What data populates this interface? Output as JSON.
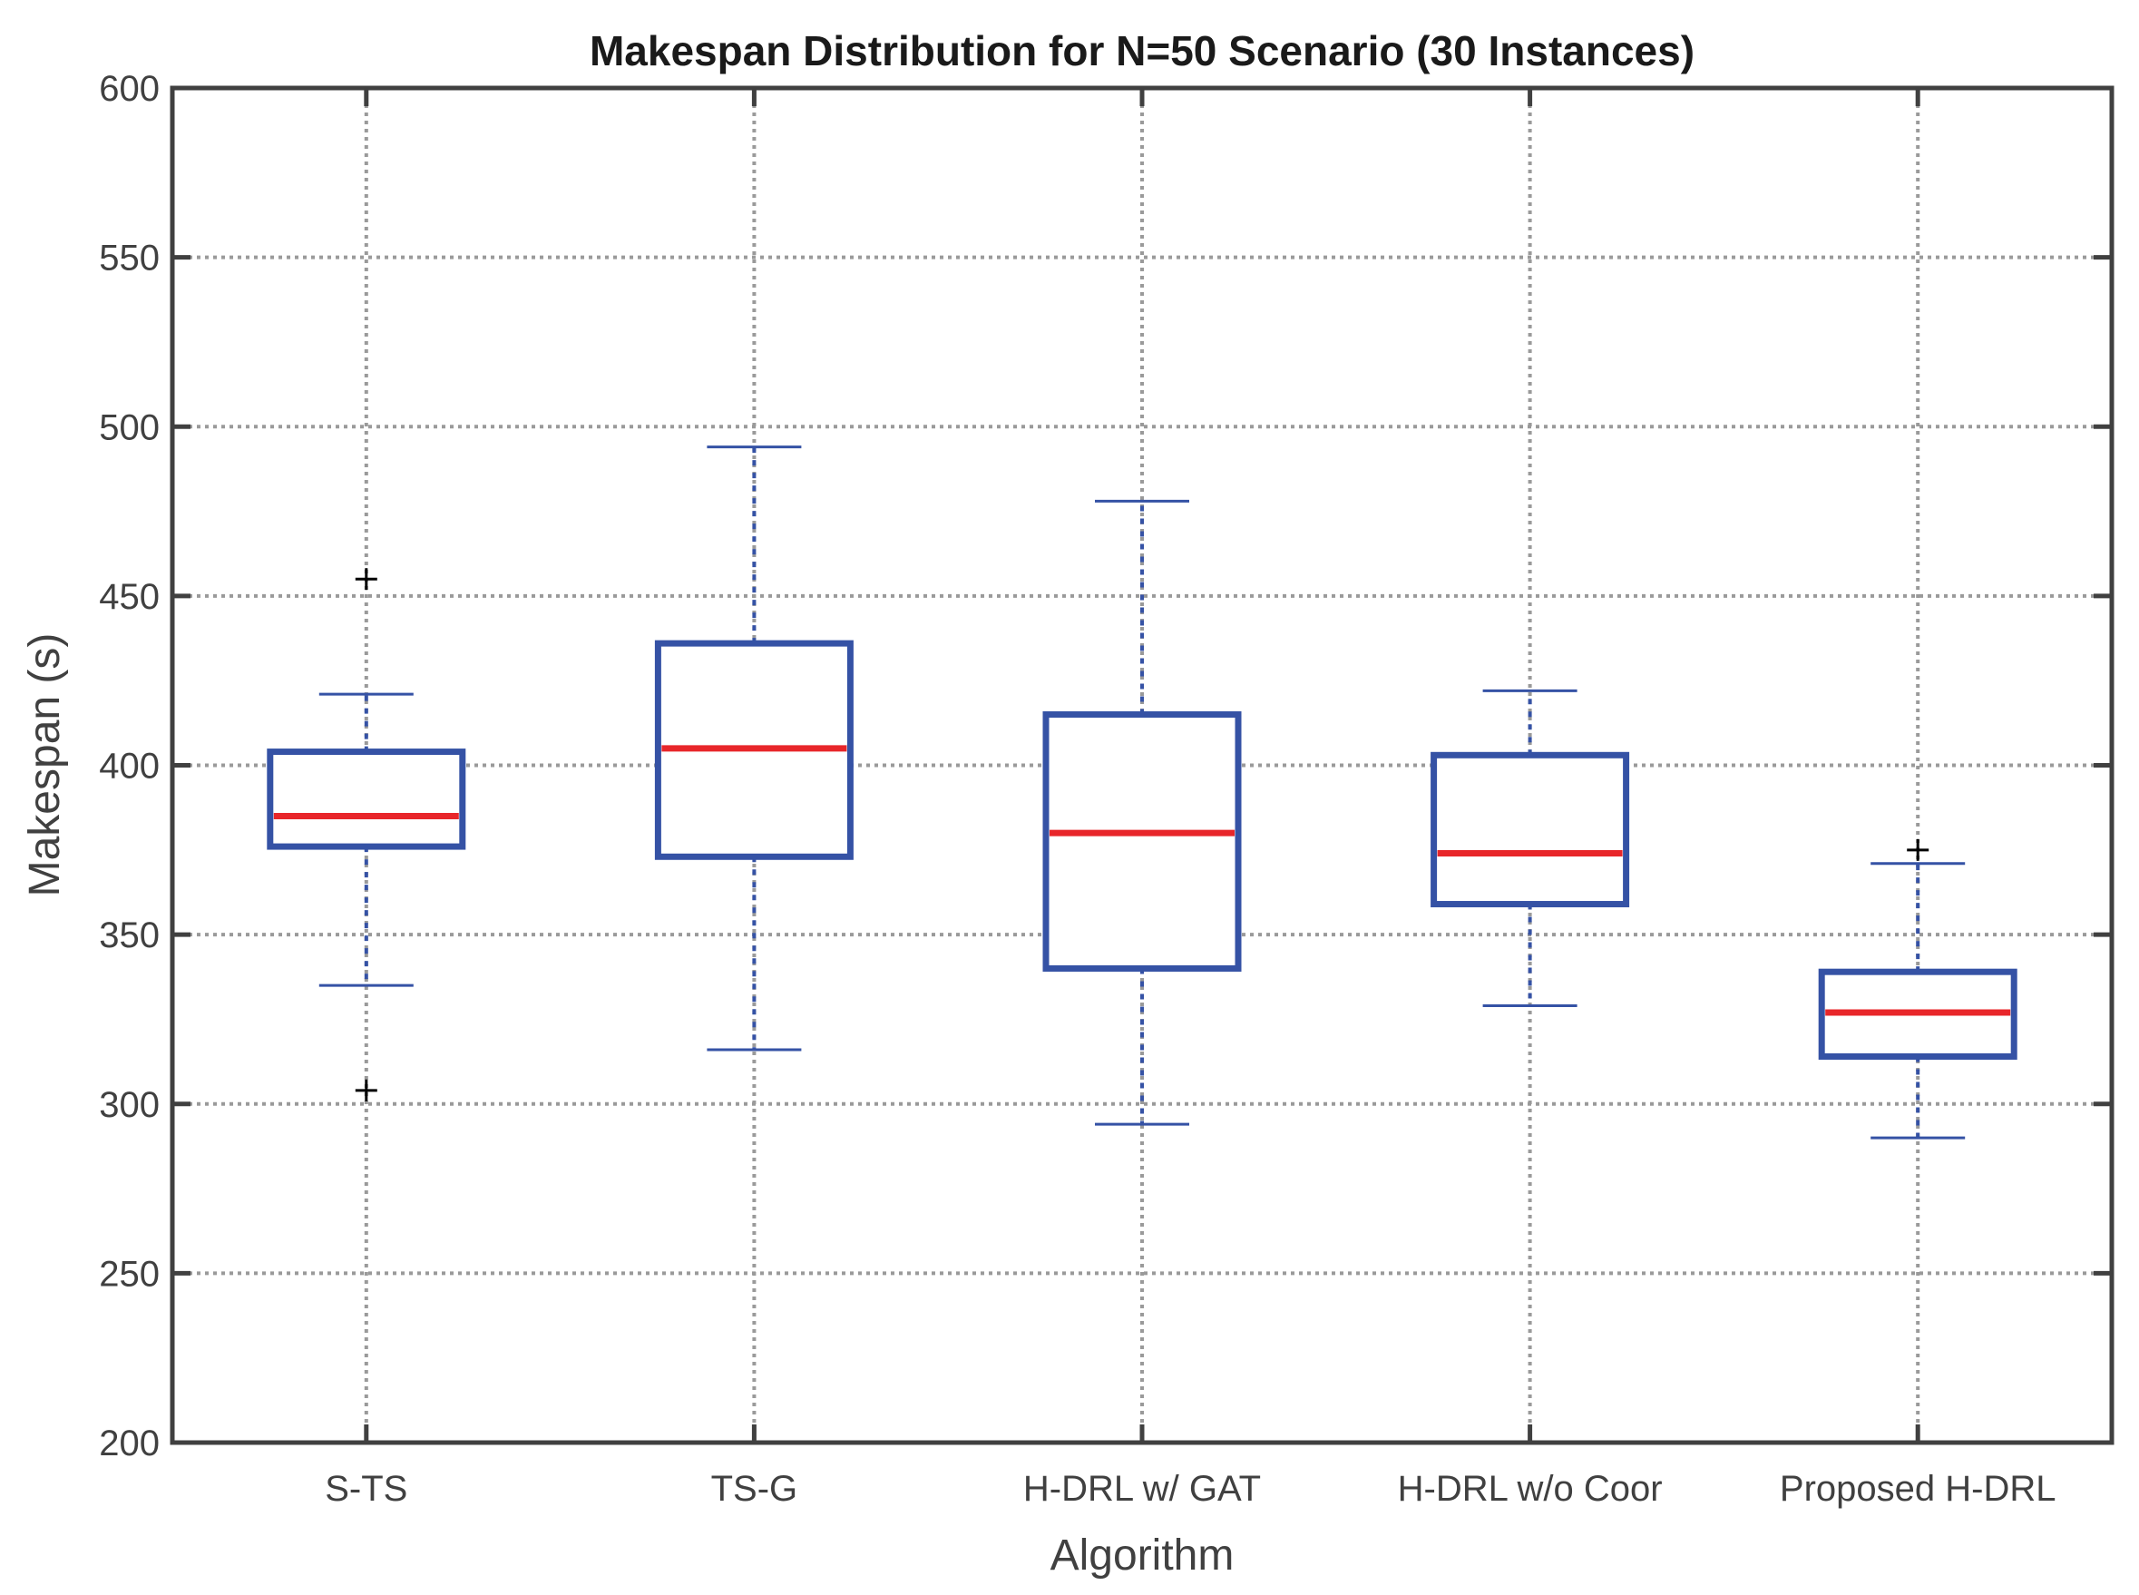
{
  "chart_data": {
    "type": "boxplot",
    "title": "Makespan Distribution for N=50 Scenario (30 Instances)",
    "xlabel": "Algorithm",
    "ylabel": "Makespan (s)",
    "ylim": [
      200,
      600
    ],
    "yticks": [
      200,
      250,
      300,
      350,
      400,
      450,
      500,
      550,
      600
    ],
    "grid": true,
    "categories": [
      "S-TS",
      "TS-G",
      "H-DRL w/ GAT",
      "H-DRL w/o Coor",
      "Proposed H-DRL"
    ],
    "boxes": [
      {
        "name": "S-TS",
        "whisker_low": 335,
        "q1": 376,
        "median": 385,
        "q3": 404,
        "whisker_high": 421,
        "outliers": [
          455,
          304
        ]
      },
      {
        "name": "TS-G",
        "whisker_low": 316,
        "q1": 373,
        "median": 405,
        "q3": 436,
        "whisker_high": 494,
        "outliers": []
      },
      {
        "name": "H-DRL w/ GAT",
        "whisker_low": 294,
        "q1": 340,
        "median": 380,
        "q3": 415,
        "whisker_high": 478,
        "outliers": []
      },
      {
        "name": "H-DRL w/o Coor",
        "whisker_low": 329,
        "q1": 359,
        "median": 374,
        "q3": 403,
        "whisker_high": 422,
        "outliers": []
      },
      {
        "name": "Proposed H-DRL",
        "whisker_low": 290,
        "q1": 314,
        "median": 327,
        "q3": 339,
        "whisker_high": 371,
        "outliers": [
          375
        ]
      }
    ],
    "colors": {
      "box": "#3552a5",
      "median": "#e8262a",
      "outlier": "#000000",
      "grid": "#9a9a9a",
      "axis": "#404040"
    }
  }
}
